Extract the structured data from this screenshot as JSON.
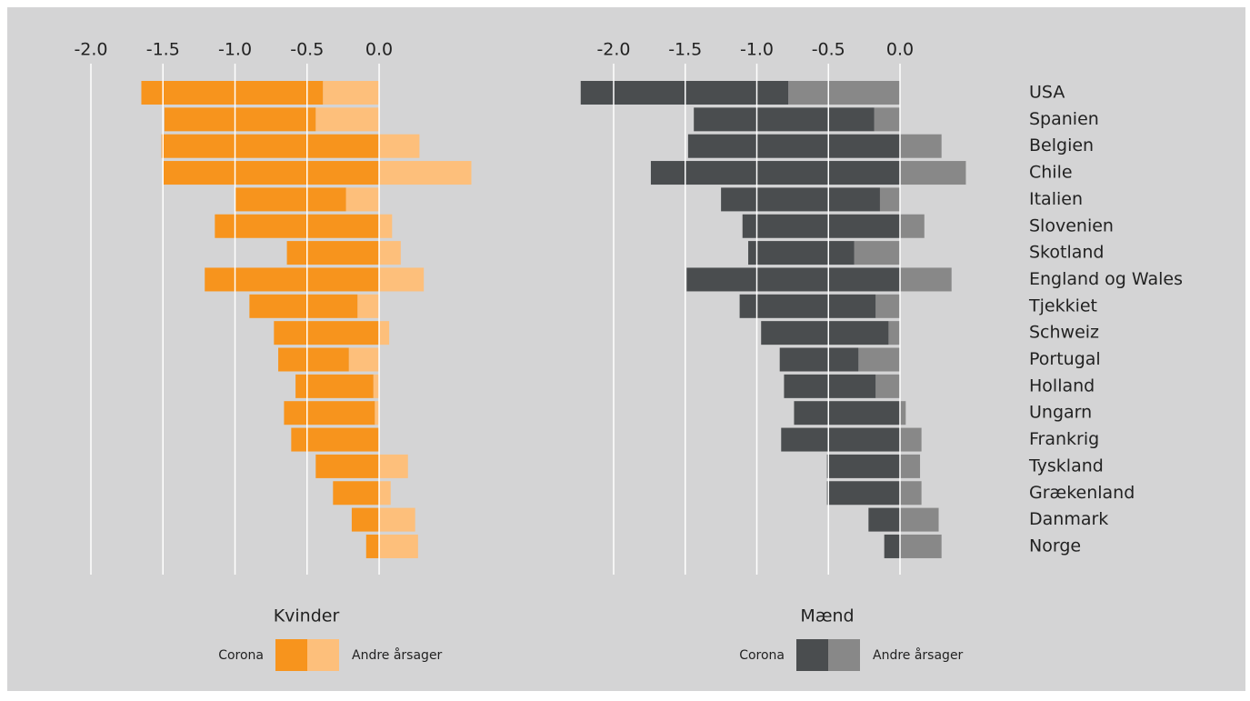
{
  "chart_data": [
    {
      "type": "bar",
      "orientation": "horizontal",
      "stacked": true,
      "title": "Kvinder",
      "xlim": [
        -2.0,
        0.7
      ],
      "xticks": [
        {
          "value": -2.0,
          "label": "-2.0"
        },
        {
          "value": -1.5,
          "label": "-1.5"
        },
        {
          "value": -1.0,
          "label": "-1.0"
        },
        {
          "value": -0.5,
          "label": "-0.5"
        },
        {
          "value": 0.0,
          "label": "0.0"
        }
      ],
      "grid": true,
      "series": [
        {
          "name": "Corona",
          "color": "#f7941d",
          "values": [
            -1.26,
            -1.05,
            -1.51,
            -1.5,
            -0.77,
            -1.14,
            -0.64,
            -1.21,
            -0.75,
            -0.73,
            -0.49,
            -0.54,
            -0.63,
            -0.61,
            -0.44,
            -0.32,
            -0.19,
            -0.09
          ]
        },
        {
          "name": "Andre årsager",
          "color": "#fdbf7b",
          "values": [
            -0.39,
            -0.44,
            0.28,
            0.64,
            -0.23,
            0.09,
            0.15,
            0.31,
            -0.15,
            0.07,
            -0.21,
            -0.04,
            -0.03,
            0,
            0.2,
            0.08,
            0.25,
            0.27
          ]
        }
      ]
    },
    {
      "type": "bar",
      "orientation": "horizontal",
      "stacked": true,
      "title": "Mænd",
      "categories": [
        "USA",
        "Spanien",
        "Belgien",
        "Chile",
        "Italien",
        "Slovenien",
        "Skotland",
        "England og Wales",
        "Tjekkiet",
        "Schweiz",
        "Portugal",
        "Holland",
        "Ungarn",
        "Frankrig",
        "Tyskland",
        "Grækenland",
        "Danmark",
        "Norge"
      ],
      "xlim": [
        -2.3,
        0.5
      ],
      "xticks": [
        {
          "value": -2.0,
          "label": "-2.0"
        },
        {
          "value": -1.5,
          "label": "-1.5"
        },
        {
          "value": -1.0,
          "label": "-1.0"
        },
        {
          "value": -0.5,
          "label": "-0.5"
        },
        {
          "value": 0.0,
          "label": "0.0"
        }
      ],
      "grid": true,
      "series": [
        {
          "name": "Corona",
          "color": "#4a4d4f",
          "values": [
            -1.45,
            -1.26,
            -1.48,
            -1.74,
            -1.11,
            -1.1,
            -0.74,
            -1.49,
            -0.95,
            -0.89,
            -0.55,
            -0.64,
            -0.74,
            -0.83,
            -0.51,
            -0.51,
            -0.22,
            -0.11
          ]
        },
        {
          "name": "Andre årsager",
          "color": "#888888",
          "values": [
            -0.78,
            -0.18,
            0.29,
            0.46,
            -0.14,
            0.17,
            -0.32,
            0.36,
            -0.17,
            -0.08,
            -0.29,
            -0.17,
            0.04,
            0.15,
            0.14,
            0.15,
            0.27,
            0.29
          ]
        }
      ]
    }
  ]
}
